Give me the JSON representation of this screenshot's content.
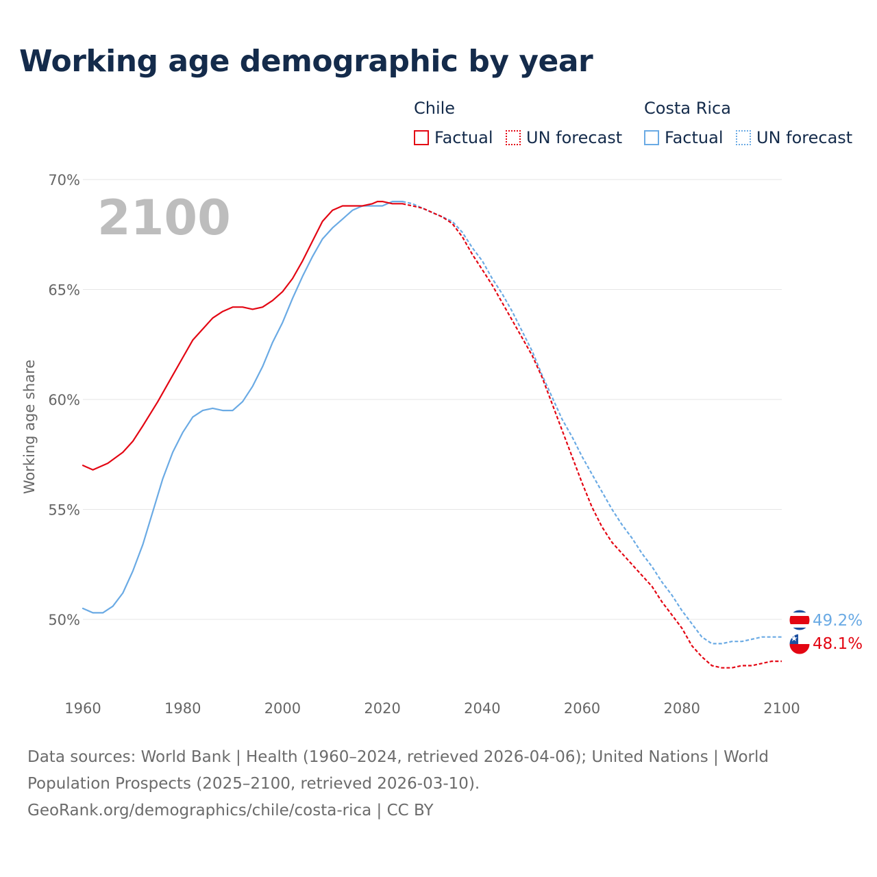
{
  "title": "Working age demographic by year",
  "legend": {
    "groups": [
      {
        "name": "Chile",
        "color": "#e30613",
        "items": [
          {
            "label": "Factual",
            "style": "solid"
          },
          {
            "label": "UN forecast",
            "style": "dotted"
          }
        ]
      },
      {
        "name": "Costa Rica",
        "color": "#6aaae4",
        "items": [
          {
            "label": "Factual",
            "style": "solid"
          },
          {
            "label": "UN forecast",
            "style": "dotted"
          }
        ]
      }
    ]
  },
  "year_display": "2100",
  "footer": {
    "sources": "Data sources: World Bank | Health (1960–2024, retrieved 2026-04-06); United Nations | World Population Prospects (2025–2100, retrieved 2026-03-10).",
    "url": "GeoRank.org/demographics/chile/costa-rica | CC BY"
  },
  "chart_data": {
    "type": "line",
    "title": "Working age demographic by year",
    "xlabel": "",
    "ylabel": "Working age share",
    "xlim": [
      1960,
      2100
    ],
    "ylim": [
      46.7,
      70
    ],
    "x_ticks": [
      1960,
      1980,
      2000,
      2020,
      2040,
      2060,
      2080,
      2100
    ],
    "x_tick_labels": [
      "1960",
      "1980",
      "2000",
      "2020",
      "2040",
      "2060",
      "2080",
      "2100"
    ],
    "y_ticks": [
      50,
      55,
      60,
      65,
      70
    ],
    "y_tick_labels": [
      "50%",
      "55%",
      "60%",
      "65%",
      "70%"
    ],
    "grid": true,
    "forecast_start": 2024,
    "series": [
      {
        "name": "Chile",
        "color": "#e30613",
        "end_label": "48.1%",
        "flag": "chile",
        "points": [
          [
            1960,
            57.0
          ],
          [
            1962,
            56.8
          ],
          [
            1965,
            57.1
          ],
          [
            1968,
            57.6
          ],
          [
            1970,
            58.1
          ],
          [
            1972,
            58.8
          ],
          [
            1975,
            59.9
          ],
          [
            1978,
            61.1
          ],
          [
            1980,
            61.9
          ],
          [
            1982,
            62.7
          ],
          [
            1984,
            63.2
          ],
          [
            1986,
            63.7
          ],
          [
            1988,
            64.0
          ],
          [
            1990,
            64.2
          ],
          [
            1992,
            64.2
          ],
          [
            1994,
            64.1
          ],
          [
            1996,
            64.2
          ],
          [
            1998,
            64.5
          ],
          [
            2000,
            64.9
          ],
          [
            2002,
            65.5
          ],
          [
            2004,
            66.3
          ],
          [
            2006,
            67.2
          ],
          [
            2008,
            68.1
          ],
          [
            2010,
            68.6
          ],
          [
            2012,
            68.8
          ],
          [
            2014,
            68.8
          ],
          [
            2016,
            68.8
          ],
          [
            2018,
            68.9
          ],
          [
            2019,
            69.0
          ],
          [
            2020,
            69.0
          ],
          [
            2022,
            68.9
          ],
          [
            2024,
            68.9
          ],
          [
            2026,
            68.8
          ],
          [
            2028,
            68.7
          ],
          [
            2030,
            68.5
          ],
          [
            2032,
            68.3
          ],
          [
            2034,
            68.0
          ],
          [
            2036,
            67.4
          ],
          [
            2038,
            66.6
          ],
          [
            2040,
            65.9
          ],
          [
            2042,
            65.2
          ],
          [
            2044,
            64.4
          ],
          [
            2046,
            63.6
          ],
          [
            2048,
            62.8
          ],
          [
            2050,
            62.0
          ],
          [
            2052,
            61.0
          ],
          [
            2054,
            59.8
          ],
          [
            2056,
            58.6
          ],
          [
            2058,
            57.4
          ],
          [
            2060,
            56.2
          ],
          [
            2062,
            55.1
          ],
          [
            2064,
            54.2
          ],
          [
            2066,
            53.5
          ],
          [
            2068,
            53.0
          ],
          [
            2070,
            52.5
          ],
          [
            2072,
            52.0
          ],
          [
            2074,
            51.5
          ],
          [
            2076,
            50.8
          ],
          [
            2078,
            50.2
          ],
          [
            2080,
            49.6
          ],
          [
            2082,
            48.8
          ],
          [
            2084,
            48.3
          ],
          [
            2086,
            47.9
          ],
          [
            2088,
            47.8
          ],
          [
            2090,
            47.8
          ],
          [
            2092,
            47.9
          ],
          [
            2094,
            47.9
          ],
          [
            2096,
            48.0
          ],
          [
            2098,
            48.1
          ],
          [
            2100,
            48.1
          ]
        ]
      },
      {
        "name": "Costa Rica",
        "color": "#6aaae4",
        "end_label": "49.2%",
        "flag": "costa-rica",
        "points": [
          [
            1960,
            50.5
          ],
          [
            1962,
            50.3
          ],
          [
            1964,
            50.3
          ],
          [
            1966,
            50.6
          ],
          [
            1968,
            51.2
          ],
          [
            1970,
            52.2
          ],
          [
            1972,
            53.4
          ],
          [
            1974,
            54.9
          ],
          [
            1976,
            56.4
          ],
          [
            1978,
            57.6
          ],
          [
            1980,
            58.5
          ],
          [
            1982,
            59.2
          ],
          [
            1984,
            59.5
          ],
          [
            1986,
            59.6
          ],
          [
            1988,
            59.5
          ],
          [
            1990,
            59.5
          ],
          [
            1992,
            59.9
          ],
          [
            1994,
            60.6
          ],
          [
            1996,
            61.5
          ],
          [
            1998,
            62.6
          ],
          [
            2000,
            63.5
          ],
          [
            2002,
            64.6
          ],
          [
            2004,
            65.6
          ],
          [
            2006,
            66.5
          ],
          [
            2008,
            67.3
          ],
          [
            2010,
            67.8
          ],
          [
            2012,
            68.2
          ],
          [
            2014,
            68.6
          ],
          [
            2016,
            68.8
          ],
          [
            2018,
            68.8
          ],
          [
            2020,
            68.8
          ],
          [
            2022,
            69.0
          ],
          [
            2024,
            69.0
          ],
          [
            2026,
            68.9
          ],
          [
            2028,
            68.7
          ],
          [
            2030,
            68.5
          ],
          [
            2032,
            68.3
          ],
          [
            2034,
            68.1
          ],
          [
            2036,
            67.6
          ],
          [
            2038,
            66.9
          ],
          [
            2040,
            66.3
          ],
          [
            2042,
            65.5
          ],
          [
            2044,
            64.8
          ],
          [
            2046,
            64.0
          ],
          [
            2048,
            63.1
          ],
          [
            2050,
            62.2
          ],
          [
            2052,
            61.1
          ],
          [
            2054,
            60.1
          ],
          [
            2056,
            59.1
          ],
          [
            2058,
            58.3
          ],
          [
            2060,
            57.4
          ],
          [
            2062,
            56.6
          ],
          [
            2064,
            55.8
          ],
          [
            2066,
            55.0
          ],
          [
            2068,
            54.3
          ],
          [
            2070,
            53.7
          ],
          [
            2072,
            53.0
          ],
          [
            2074,
            52.4
          ],
          [
            2076,
            51.7
          ],
          [
            2078,
            51.1
          ],
          [
            2080,
            50.4
          ],
          [
            2082,
            49.8
          ],
          [
            2084,
            49.2
          ],
          [
            2086,
            48.9
          ],
          [
            2088,
            48.9
          ],
          [
            2090,
            49.0
          ],
          [
            2092,
            49.0
          ],
          [
            2094,
            49.1
          ],
          [
            2096,
            49.2
          ],
          [
            2098,
            49.2
          ],
          [
            2100,
            49.2
          ]
        ]
      }
    ]
  }
}
